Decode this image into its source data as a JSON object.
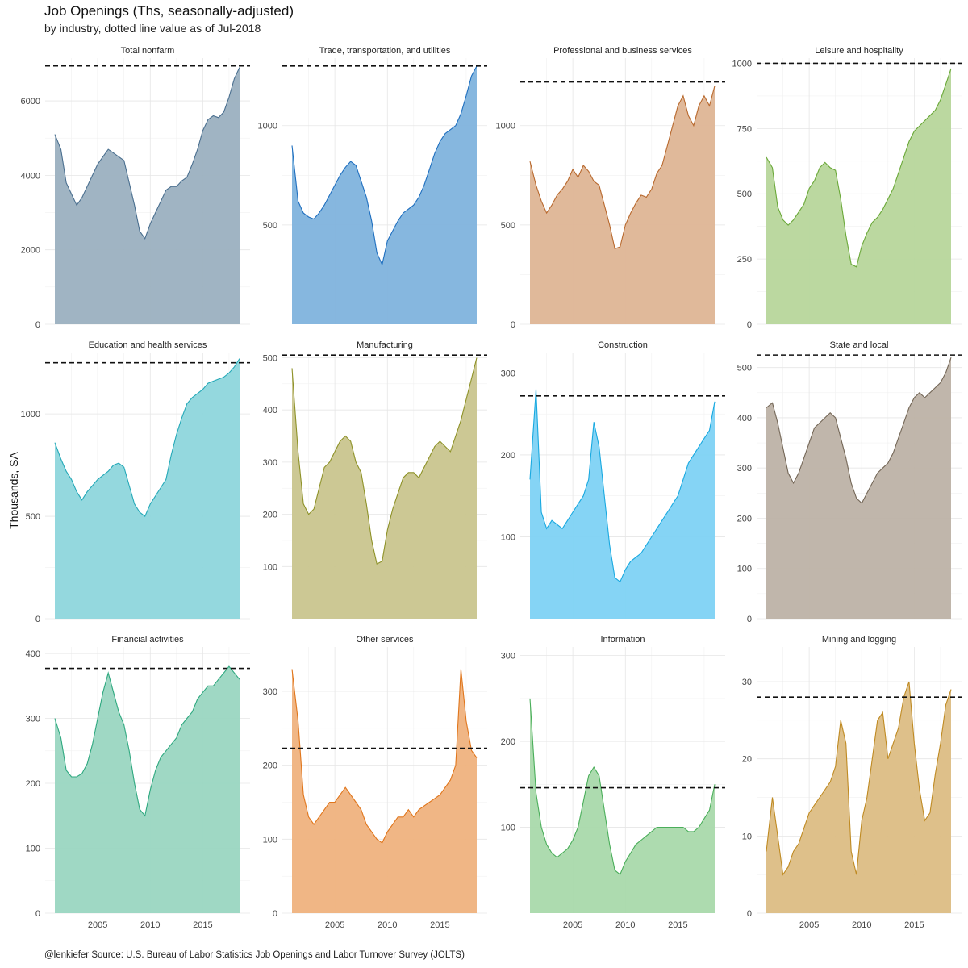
{
  "title": "Job Openings (Ths, seasonally-adjusted)",
  "subtitle": "by industry, dotted line value as of Jul-2018",
  "ylabel": "Thousands, SA",
  "caption": "@lenkiefer Source: U.S. Bureau of Labor Statistics Job Openings and Labor Turnover Survey (JOLTS)",
  "xticks": [
    2005,
    2010,
    2015
  ],
  "chart_data": [
    {
      "type": "area",
      "title": "Total nonfarm",
      "color": "#4a6f8f",
      "fill": "#9bb0c0",
      "ylim": [
        0,
        7150
      ],
      "yticks": [
        0,
        2000,
        4000,
        6000
      ],
      "ref": 6939,
      "x": [
        2000.92,
        2001.5,
        2002,
        2002.5,
        2003,
        2003.5,
        2004,
        2004.5,
        2005,
        2005.5,
        2006,
        2006.5,
        2007,
        2007.5,
        2008,
        2008.5,
        2009,
        2009.5,
        2010,
        2010.5,
        2011,
        2011.5,
        2012,
        2012.5,
        2013,
        2013.5,
        2014,
        2014.5,
        2015,
        2015.5,
        2016,
        2016.5,
        2017,
        2017.5,
        2018,
        2018.5
      ],
      "y": [
        5100,
        4700,
        3800,
        3500,
        3200,
        3400,
        3700,
        4000,
        4300,
        4500,
        4700,
        4600,
        4500,
        4400,
        3800,
        3200,
        2500,
        2300,
        2700,
        3000,
        3300,
        3600,
        3700,
        3700,
        3850,
        3950,
        4300,
        4700,
        5200,
        5500,
        5600,
        5550,
        5700,
        6100,
        6600,
        6900
      ]
    },
    {
      "type": "area",
      "title": "Trade, transportation, and utilities",
      "color": "#1f6fbf",
      "fill": "#7fb3dd",
      "ylim": [
        0,
        1340
      ],
      "yticks": [
        500,
        1000
      ],
      "ref": 1300,
      "x": [
        2000.92,
        2001.5,
        2002,
        2002.5,
        2003,
        2003.5,
        2004,
        2004.5,
        2005,
        2005.5,
        2006,
        2006.5,
        2007,
        2007.5,
        2008,
        2008.5,
        2009,
        2009.5,
        2010,
        2010.5,
        2011,
        2011.5,
        2012,
        2012.5,
        2013,
        2013.5,
        2014,
        2014.5,
        2015,
        2015.5,
        2016,
        2016.5,
        2017,
        2017.5,
        2018,
        2018.5
      ],
      "y": [
        900,
        620,
        560,
        540,
        530,
        560,
        600,
        650,
        700,
        750,
        790,
        820,
        800,
        720,
        640,
        520,
        360,
        300,
        420,
        470,
        520,
        560,
        580,
        600,
        640,
        700,
        780,
        860,
        920,
        960,
        980,
        1000,
        1060,
        1150,
        1250,
        1300
      ]
    },
    {
      "type": "area",
      "title": "Professional and business services",
      "color": "#b8692e",
      "fill": "#deb595",
      "ylim": [
        0,
        1340
      ],
      "yticks": [
        0,
        500,
        1000
      ],
      "ref": 1220,
      "x": [
        2000.92,
        2001.5,
        2002,
        2002.5,
        2003,
        2003.5,
        2004,
        2004.5,
        2005,
        2005.5,
        2006,
        2006.5,
        2007,
        2007.5,
        2008,
        2008.5,
        2009,
        2009.5,
        2010,
        2010.5,
        2011,
        2011.5,
        2012,
        2012.5,
        2013,
        2013.5,
        2014,
        2014.5,
        2015,
        2015.5,
        2016,
        2016.5,
        2017,
        2017.5,
        2018,
        2018.5
      ],
      "y": [
        820,
        700,
        620,
        560,
        600,
        650,
        680,
        720,
        780,
        740,
        800,
        770,
        720,
        700,
        600,
        500,
        380,
        390,
        500,
        560,
        610,
        650,
        640,
        680,
        760,
        800,
        900,
        1000,
        1100,
        1150,
        1050,
        1000,
        1100,
        1150,
        1100,
        1200
      ]
    },
    {
      "type": "area",
      "title": "Leisure and hospitality",
      "color": "#6aa838",
      "fill": "#b7d69b",
      "ylim": [
        0,
        1020
      ],
      "yticks": [
        0,
        250,
        500,
        750,
        1000
      ],
      "ref": 1000,
      "x": [
        2000.92,
        2001.5,
        2002,
        2002.5,
        2003,
        2003.5,
        2004,
        2004.5,
        2005,
        2005.5,
        2006,
        2006.5,
        2007,
        2007.5,
        2008,
        2008.5,
        2009,
        2009.5,
        2010,
        2010.5,
        2011,
        2011.5,
        2012,
        2012.5,
        2013,
        2013.5,
        2014,
        2014.5,
        2015,
        2015.5,
        2016,
        2016.5,
        2017,
        2017.5,
        2018,
        2018.5
      ],
      "y": [
        640,
        600,
        450,
        400,
        380,
        400,
        430,
        460,
        520,
        550,
        600,
        620,
        600,
        590,
        480,
        340,
        230,
        220,
        300,
        350,
        390,
        410,
        440,
        480,
        520,
        580,
        640,
        700,
        740,
        760,
        780,
        800,
        820,
        860,
        920,
        980
      ]
    },
    {
      "type": "area",
      "title": "Education and health services",
      "color": "#25a9b8",
      "fill": "#8ed6dc",
      "ylim": [
        0,
        1300
      ],
      "yticks": [
        0,
        500,
        1000
      ],
      "ref": 1250,
      "x": [
        2000.92,
        2001.5,
        2002,
        2002.5,
        2003,
        2003.5,
        2004,
        2004.5,
        2005,
        2005.5,
        2006,
        2006.5,
        2007,
        2007.5,
        2008,
        2008.5,
        2009,
        2009.5,
        2010,
        2010.5,
        2011,
        2011.5,
        2012,
        2012.5,
        2013,
        2013.5,
        2014,
        2014.5,
        2015,
        2015.5,
        2016,
        2016.5,
        2017,
        2017.5,
        2018,
        2018.5
      ],
      "y": [
        860,
        780,
        720,
        680,
        620,
        580,
        620,
        650,
        680,
        700,
        720,
        750,
        760,
        740,
        650,
        560,
        520,
        500,
        560,
        600,
        640,
        680,
        800,
        900,
        980,
        1050,
        1080,
        1100,
        1120,
        1150,
        1160,
        1170,
        1180,
        1200,
        1230,
        1270
      ]
    },
    {
      "type": "area",
      "title": "Manufacturing",
      "color": "#8e9228",
      "fill": "#c9c58e",
      "ylim": [
        0,
        510
      ],
      "yticks": [
        100,
        200,
        300,
        400,
        500
      ],
      "ref": 505,
      "x": [
        2000.92,
        2001.5,
        2002,
        2002.5,
        2003,
        2003.5,
        2004,
        2004.5,
        2005,
        2005.5,
        2006,
        2006.5,
        2007,
        2007.5,
        2008,
        2008.5,
        2009,
        2009.5,
        2010,
        2010.5,
        2011,
        2011.5,
        2012,
        2012.5,
        2013,
        2013.5,
        2014,
        2014.5,
        2015,
        2015.5,
        2016,
        2016.5,
        2017,
        2017.5,
        2018,
        2018.5
      ],
      "y": [
        480,
        320,
        220,
        200,
        210,
        250,
        290,
        300,
        320,
        340,
        350,
        340,
        300,
        280,
        220,
        150,
        105,
        110,
        170,
        210,
        240,
        270,
        280,
        280,
        270,
        290,
        310,
        330,
        340,
        330,
        320,
        350,
        380,
        420,
        460,
        500
      ]
    },
    {
      "type": "area",
      "title": "Construction",
      "color": "#19a9e0",
      "fill": "#7ed2f4",
      "ylim": [
        0,
        325
      ],
      "yticks": [
        100,
        200,
        300
      ],
      "ref": 272,
      "x": [
        2000.92,
        2001.5,
        2002,
        2002.5,
        2003,
        2003.5,
        2004,
        2004.5,
        2005,
        2005.5,
        2006,
        2006.5,
        2007,
        2007.5,
        2008,
        2008.5,
        2009,
        2009.5,
        2010,
        2010.5,
        2011,
        2011.5,
        2012,
        2012.5,
        2013,
        2013.5,
        2014,
        2014.5,
        2015,
        2015.5,
        2016,
        2016.5,
        2017,
        2017.5,
        2018,
        2018.5
      ],
      "y": [
        170,
        280,
        130,
        110,
        120,
        115,
        110,
        120,
        130,
        140,
        150,
        170,
        240,
        210,
        150,
        90,
        50,
        45,
        60,
        70,
        75,
        80,
        90,
        100,
        110,
        120,
        130,
        140,
        150,
        170,
        190,
        200,
        210,
        220,
        230,
        265
      ]
    },
    {
      "type": "area",
      "title": "State and local",
      "color": "#746757",
      "fill": "#bdb2a7",
      "ylim": [
        0,
        530
      ],
      "yticks": [
        0,
        100,
        200,
        300,
        400,
        500
      ],
      "ref": 525,
      "x": [
        2000.92,
        2001.5,
        2002,
        2002.5,
        2003,
        2003.5,
        2004,
        2004.5,
        2005,
        2005.5,
        2006,
        2006.5,
        2007,
        2007.5,
        2008,
        2008.5,
        2009,
        2009.5,
        2010,
        2010.5,
        2011,
        2011.5,
        2012,
        2012.5,
        2013,
        2013.5,
        2014,
        2014.5,
        2015,
        2015.5,
        2016,
        2016.5,
        2017,
        2017.5,
        2018,
        2018.5
      ],
      "y": [
        420,
        430,
        390,
        340,
        290,
        270,
        290,
        320,
        350,
        380,
        390,
        400,
        410,
        400,
        360,
        320,
        270,
        240,
        230,
        250,
        270,
        290,
        300,
        310,
        330,
        360,
        390,
        420,
        440,
        450,
        440,
        450,
        460,
        470,
        490,
        520
      ]
    },
    {
      "type": "area",
      "title": "Financial activities",
      "color": "#2ea87f",
      "fill": "#9ad6c1",
      "ylim": [
        0,
        410
      ],
      "yticks": [
        0,
        100,
        200,
        300,
        400
      ],
      "ref": 377,
      "x": [
        2000.92,
        2001.5,
        2002,
        2002.5,
        2003,
        2003.5,
        2004,
        2004.5,
        2005,
        2005.5,
        2006,
        2006.5,
        2007,
        2007.5,
        2008,
        2008.5,
        2009,
        2009.5,
        2010,
        2010.5,
        2011,
        2011.5,
        2012,
        2012.5,
        2013,
        2013.5,
        2014,
        2014.5,
        2015,
        2015.5,
        2016,
        2016.5,
        2017,
        2017.5,
        2018,
        2018.5
      ],
      "y": [
        300,
        270,
        220,
        210,
        210,
        215,
        230,
        260,
        300,
        340,
        370,
        340,
        310,
        290,
        250,
        200,
        160,
        150,
        190,
        220,
        240,
        250,
        260,
        270,
        290,
        300,
        310,
        330,
        340,
        350,
        350,
        360,
        370,
        380,
        370,
        360
      ]
    },
    {
      "type": "area",
      "title": "Other services",
      "color": "#e0761c",
      "fill": "#efb27e",
      "ylim": [
        0,
        360
      ],
      "yticks": [
        0,
        100,
        200,
        300
      ],
      "ref": 223,
      "x": [
        2000.92,
        2001.5,
        2002,
        2002.5,
        2003,
        2003.5,
        2004,
        2004.5,
        2005,
        2005.5,
        2006,
        2006.5,
        2007,
        2007.5,
        2008,
        2008.5,
        2009,
        2009.5,
        2010,
        2010.5,
        2011,
        2011.5,
        2012,
        2012.5,
        2013,
        2013.5,
        2014,
        2014.5,
        2015,
        2015.5,
        2016,
        2016.5,
        2017,
        2017.5,
        2018,
        2018.5
      ],
      "y": [
        330,
        260,
        160,
        130,
        120,
        130,
        140,
        150,
        150,
        160,
        170,
        160,
        150,
        140,
        120,
        110,
        100,
        95,
        110,
        120,
        130,
        130,
        140,
        130,
        140,
        145,
        150,
        155,
        160,
        170,
        180,
        200,
        330,
        260,
        220,
        210
      ]
    },
    {
      "type": "area",
      "title": "Information",
      "color": "#4aae5a",
      "fill": "#a9d9ab",
      "ylim": [
        0,
        310
      ],
      "yticks": [
        100,
        200,
        300
      ],
      "ref": 146,
      "x": [
        2000.92,
        2001.5,
        2002,
        2002.5,
        2003,
        2003.5,
        2004,
        2004.5,
        2005,
        2005.5,
        2006,
        2006.5,
        2007,
        2007.5,
        2008,
        2008.5,
        2009,
        2009.5,
        2010,
        2010.5,
        2011,
        2011.5,
        2012,
        2012.5,
        2013,
        2013.5,
        2014,
        2014.5,
        2015,
        2015.5,
        2016,
        2016.5,
        2017,
        2017.5,
        2018,
        2018.5
      ],
      "y": [
        250,
        140,
        100,
        80,
        70,
        65,
        70,
        75,
        85,
        100,
        130,
        160,
        170,
        160,
        120,
        80,
        50,
        45,
        60,
        70,
        80,
        85,
        90,
        95,
        100,
        100,
        100,
        100,
        100,
        100,
        95,
        95,
        100,
        110,
        120,
        150
      ]
    },
    {
      "type": "area",
      "title": "Mining and logging",
      "color": "#bf8a22",
      "fill": "#dcbd84",
      "ylim": [
        0,
        34.5
      ],
      "yticks": [
        0,
        10,
        20,
        30
      ],
      "ref": 28,
      "x": [
        2000.92,
        2001.5,
        2002,
        2002.5,
        2003,
        2003.5,
        2004,
        2004.5,
        2005,
        2005.5,
        2006,
        2006.5,
        2007,
        2007.5,
        2008,
        2008.5,
        2009,
        2009.5,
        2010,
        2010.5,
        2011,
        2011.5,
        2012,
        2012.5,
        2013,
        2013.5,
        2014,
        2014.5,
        2015,
        2015.5,
        2016,
        2016.5,
        2017,
        2017.5,
        2018,
        2018.5
      ],
      "y": [
        8,
        15,
        10,
        5,
        6,
        8,
        9,
        11,
        13,
        14,
        15,
        16,
        17,
        19,
        25,
        22,
        8,
        5,
        12,
        15,
        20,
        25,
        26,
        20,
        22,
        24,
        28,
        30,
        22,
        16,
        12,
        13,
        18,
        22,
        27,
        29
      ]
    }
  ]
}
